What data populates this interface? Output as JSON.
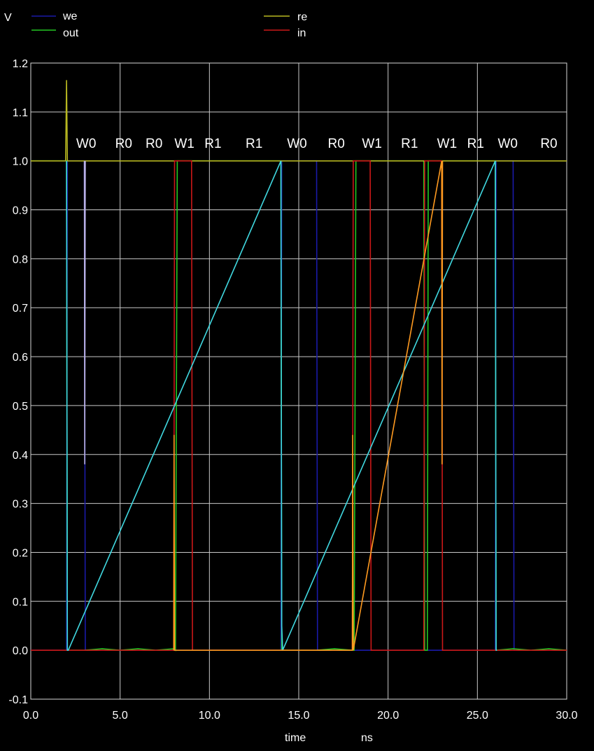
{
  "chart_data": {
    "type": "line",
    "ylabel": "V",
    "xlabel": "time",
    "xunit": "ns",
    "xlim": [
      0.0,
      30.0
    ],
    "ylim": [
      -0.1,
      1.2
    ],
    "xticks": [
      "0.0",
      "5.0",
      "10.0",
      "15.0",
      "20.0",
      "25.0",
      "30.0"
    ],
    "yticks": [
      "-0.1",
      "0.0",
      "0.1",
      "0.2",
      "0.3",
      "0.4",
      "0.5",
      "0.6",
      "0.7",
      "0.8",
      "0.9",
      "1.0",
      "1.1",
      "1.2"
    ],
    "grid": true,
    "legend": [
      {
        "name": "we",
        "color": "#1a1aa8"
      },
      {
        "name": "out",
        "color": "#22c822"
      },
      {
        "name": "re",
        "color": "#b8b820"
      },
      {
        "name": "in",
        "color": "#cc1818"
      }
    ],
    "annotations": [
      {
        "text": "W0",
        "x": 3.1
      },
      {
        "text": "R0",
        "x": 5.2
      },
      {
        "text": "R0",
        "x": 6.9
      },
      {
        "text": "W1",
        "x": 8.6
      },
      {
        "text": "R1",
        "x": 10.2
      },
      {
        "text": "R1",
        "x": 12.5
      },
      {
        "text": "W0",
        "x": 14.9
      },
      {
        "text": "R0",
        "x": 17.1
      },
      {
        "text": "W1",
        "x": 19.1
      },
      {
        "text": "R1",
        "x": 21.2
      },
      {
        "text": "W1",
        "x": 23.3
      },
      {
        "text": "R1",
        "x": 24.9
      },
      {
        "text": "W0",
        "x": 26.7
      },
      {
        "text": "R0",
        "x": 29.0
      }
    ],
    "series": [
      {
        "name": "we",
        "color": "#1a1aa8",
        "x": [
          0.0,
          2.0,
          2.05,
          3.0,
          3.05,
          14.0,
          14.05,
          16.0,
          16.05,
          26.0,
          26.05,
          27.0,
          27.05,
          30.0
        ],
        "y": [
          0.0,
          0.0,
          1.0,
          1.0,
          0.0,
          0.0,
          1.0,
          1.0,
          0.0,
          0.0,
          1.0,
          1.0,
          0.0,
          0.0
        ]
      },
      {
        "name": "out",
        "color": "#22c822",
        "x": [
          0.0,
          2.0,
          2.05,
          3.0,
          4.0,
          5.0,
          6.0,
          7.0,
          8.0,
          8.1,
          8.2,
          14.0,
          14.05,
          16.0,
          17.0,
          18.0,
          18.1,
          18.2,
          22.0,
          22.05,
          22.2,
          22.25,
          26.0,
          26.05,
          27.0,
          28.0,
          29.0,
          30.0
        ],
        "y": [
          1.0,
          1.0,
          0.0,
          0.0,
          0.003,
          0.0,
          0.003,
          0.0,
          0.003,
          0.0,
          1.0,
          1.0,
          0.0,
          0.0,
          0.003,
          0.0,
          0.0,
          1.0,
          1.0,
          0.0,
          0.0,
          1.0,
          1.0,
          0.0,
          0.003,
          0.0,
          0.003,
          0.0
        ]
      },
      {
        "name": "re",
        "color": "#b8b820",
        "x": [
          0.0,
          1.95,
          2.0,
          2.05,
          30.0
        ],
        "y": [
          1.0,
          1.0,
          1.165,
          1.0,
          1.0
        ]
      },
      {
        "name": "in",
        "color": "#cc1818",
        "x": [
          0.0,
          8.0,
          8.05,
          9.0,
          9.05,
          18.0,
          18.05,
          19.0,
          19.05,
          22.0,
          22.05,
          23.0,
          23.05,
          30.0
        ],
        "y": [
          0.0,
          0.0,
          1.0,
          1.0,
          0.0,
          0.0,
          1.0,
          1.0,
          0.0,
          0.0,
          1.0,
          1.0,
          0.0,
          0.0
        ]
      },
      {
        "name": "overlay-cyan",
        "color": "#40d8e0",
        "x": [
          2.0,
          2.05,
          2.1,
          14.0,
          14.05,
          14.1,
          26.0,
          26.05,
          26.1
        ],
        "y": [
          1.0,
          0.0,
          0.0,
          1.0,
          0.05,
          0.0,
          1.0,
          0.0,
          0.0
        ]
      },
      {
        "name": "overlay-orange",
        "color": "#ff9a20",
        "x": [
          8.0,
          8.02,
          8.05,
          18.0,
          18.02,
          18.05,
          23.0,
          23.02,
          23.05
        ],
        "y": [
          0.0,
          0.44,
          0.0,
          0.0,
          0.44,
          0.0,
          1.0,
          0.38,
          1.0
        ]
      },
      {
        "name": "overlay-lavender",
        "color": "#b8b0e8",
        "x": [
          3.0,
          3.02,
          3.05
        ],
        "y": [
          1.0,
          0.38,
          1.0
        ]
      }
    ]
  }
}
